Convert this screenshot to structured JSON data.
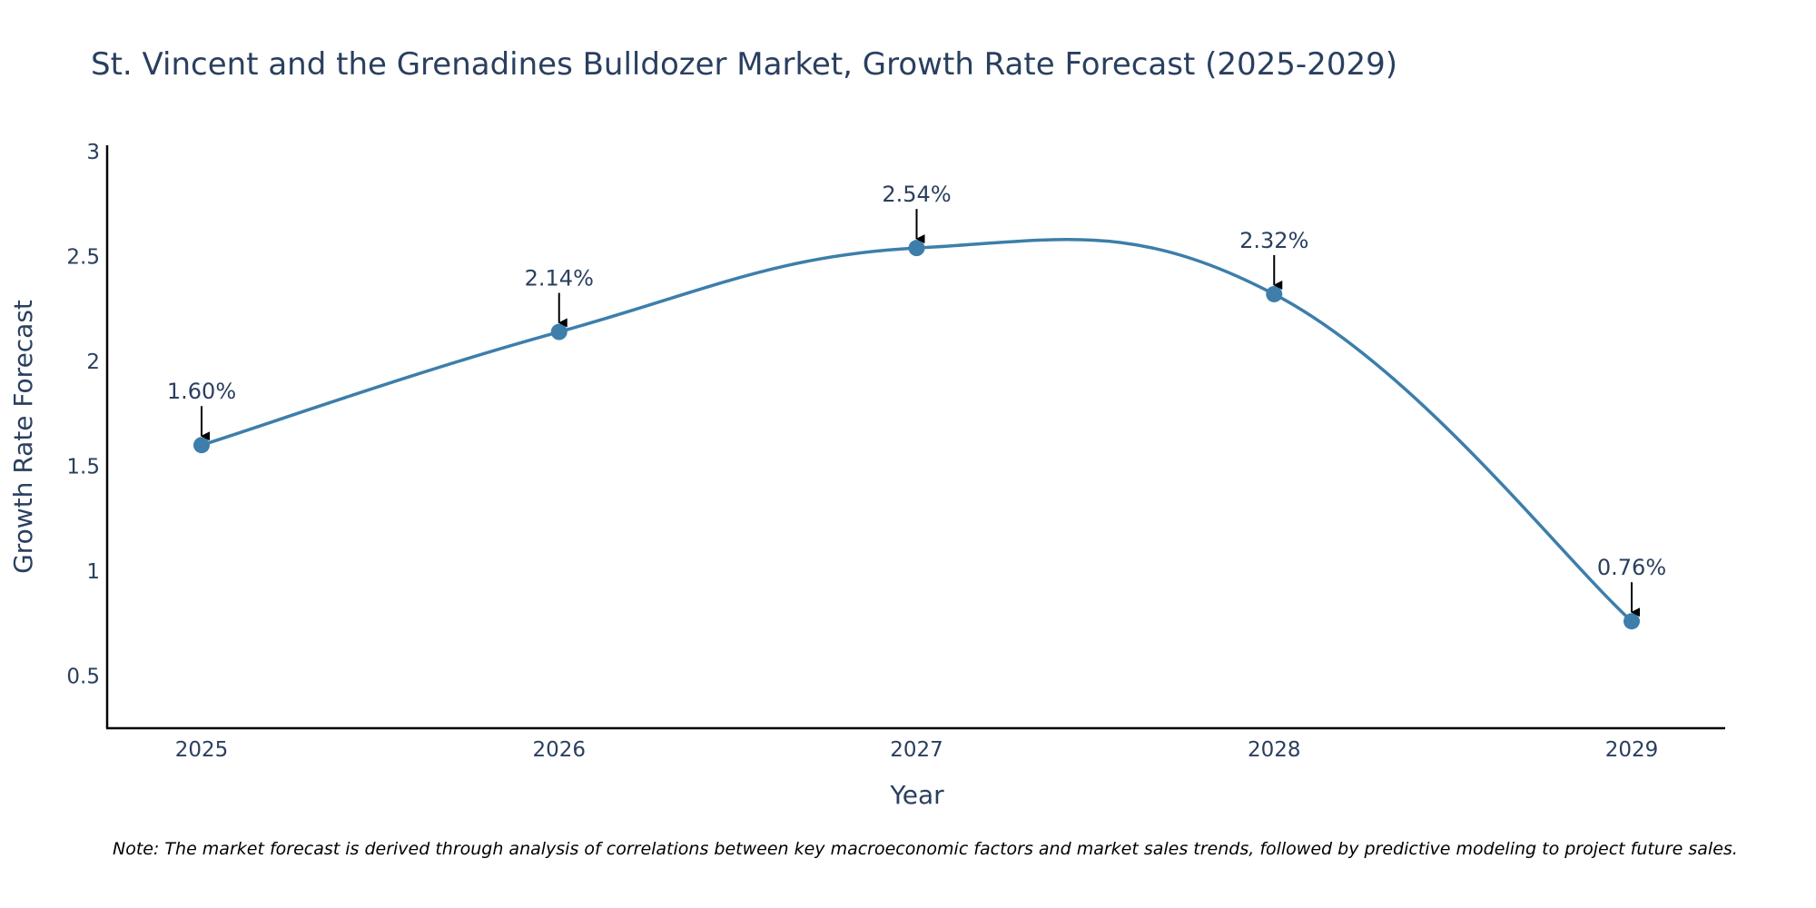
{
  "chart_data": {
    "type": "line",
    "title": "St. Vincent and the Grenadines Bulldozer Market, Growth Rate Forecast (2025-2029)",
    "xlabel": "Year",
    "ylabel": "Growth Rate Forecast",
    "categories": [
      "2025",
      "2026",
      "2027",
      "2028",
      "2029"
    ],
    "series": [
      {
        "name": "Growth Rate Forecast",
        "values": [
          1.6,
          2.14,
          2.54,
          2.32,
          0.76
        ],
        "labels": [
          "1.60%",
          "2.14%",
          "2.54%",
          "2.32%",
          "0.76%"
        ]
      }
    ],
    "yticks": [
      "0.5",
      "1",
      "1.5",
      "2",
      "2.5",
      "3"
    ],
    "ylim": [
      0.25,
      3.03
    ],
    "grid": false,
    "line_shape": "spline",
    "colors": {
      "line": "#3d7eab",
      "marker": "#3d7eab",
      "arrow": "#000000",
      "axis": "#000000",
      "text": "#2a3f5f"
    },
    "note": "Note: The market forecast is derived through analysis of correlations between key macroeconomic factors and market sales trends, followed by predictive modeling to project future sales."
  }
}
